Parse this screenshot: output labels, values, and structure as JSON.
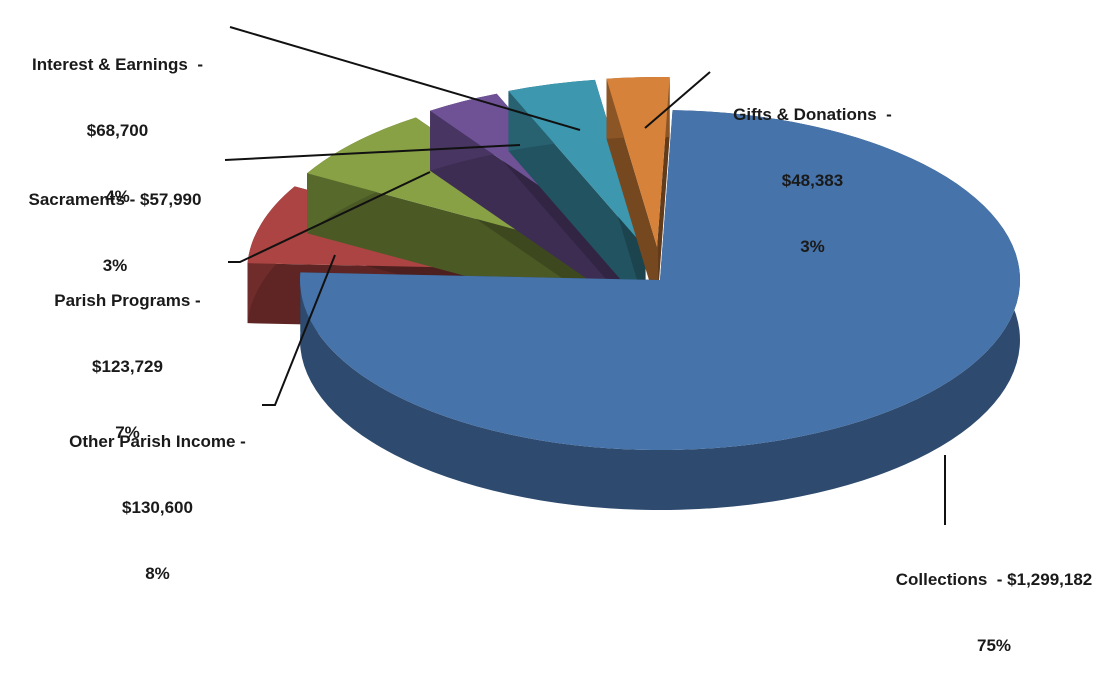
{
  "chart_data": {
    "type": "pie",
    "title": "",
    "style": "3d-exploded",
    "slices": [
      {
        "name": "Collections",
        "value": 1299182,
        "value_label": "$1,299,182",
        "percent_label": "75%",
        "color": "#4673aa"
      },
      {
        "name": "Other Parish Income",
        "value": 130600,
        "value_label": "$130,600",
        "percent_label": "8%",
        "color": "#ab4442"
      },
      {
        "name": "Parish Programs",
        "value": 123729,
        "value_label": "$123,729",
        "percent_label": "7%",
        "color": "#88a144"
      },
      {
        "name": "Sacraments",
        "value": 57990,
        "value_label": "$57,990",
        "percent_label": "3%",
        "color": "#6f5296"
      },
      {
        "name": "Interest & Earnings",
        "value": 68700,
        "value_label": "$68,700",
        "percent_label": "4%",
        "color": "#3d97ae"
      },
      {
        "name": "Gifts & Donations",
        "value": 48383,
        "value_label": "$48,383",
        "percent_label": "3%",
        "color": "#d7823a"
      }
    ]
  },
  "labels": {
    "collections": {
      "line1": "Collections  - $1,299,182",
      "line2": "75%"
    },
    "other": {
      "line1": "Other Parish Income -",
      "line2": "$130,600",
      "line3": "8%"
    },
    "programs": {
      "line1": "Parish Programs -",
      "line2": "$123,729",
      "line3": "7%"
    },
    "sacraments": {
      "line1": "Sacraments - $57,990",
      "line2": "3%"
    },
    "interest": {
      "line1": "Interest & Earnings  -",
      "line2": "$68,700",
      "line3": "4%"
    },
    "gifts": {
      "line1": "Gifts & Donations  -",
      "line2": "$48,383",
      "line3": "3%"
    }
  }
}
